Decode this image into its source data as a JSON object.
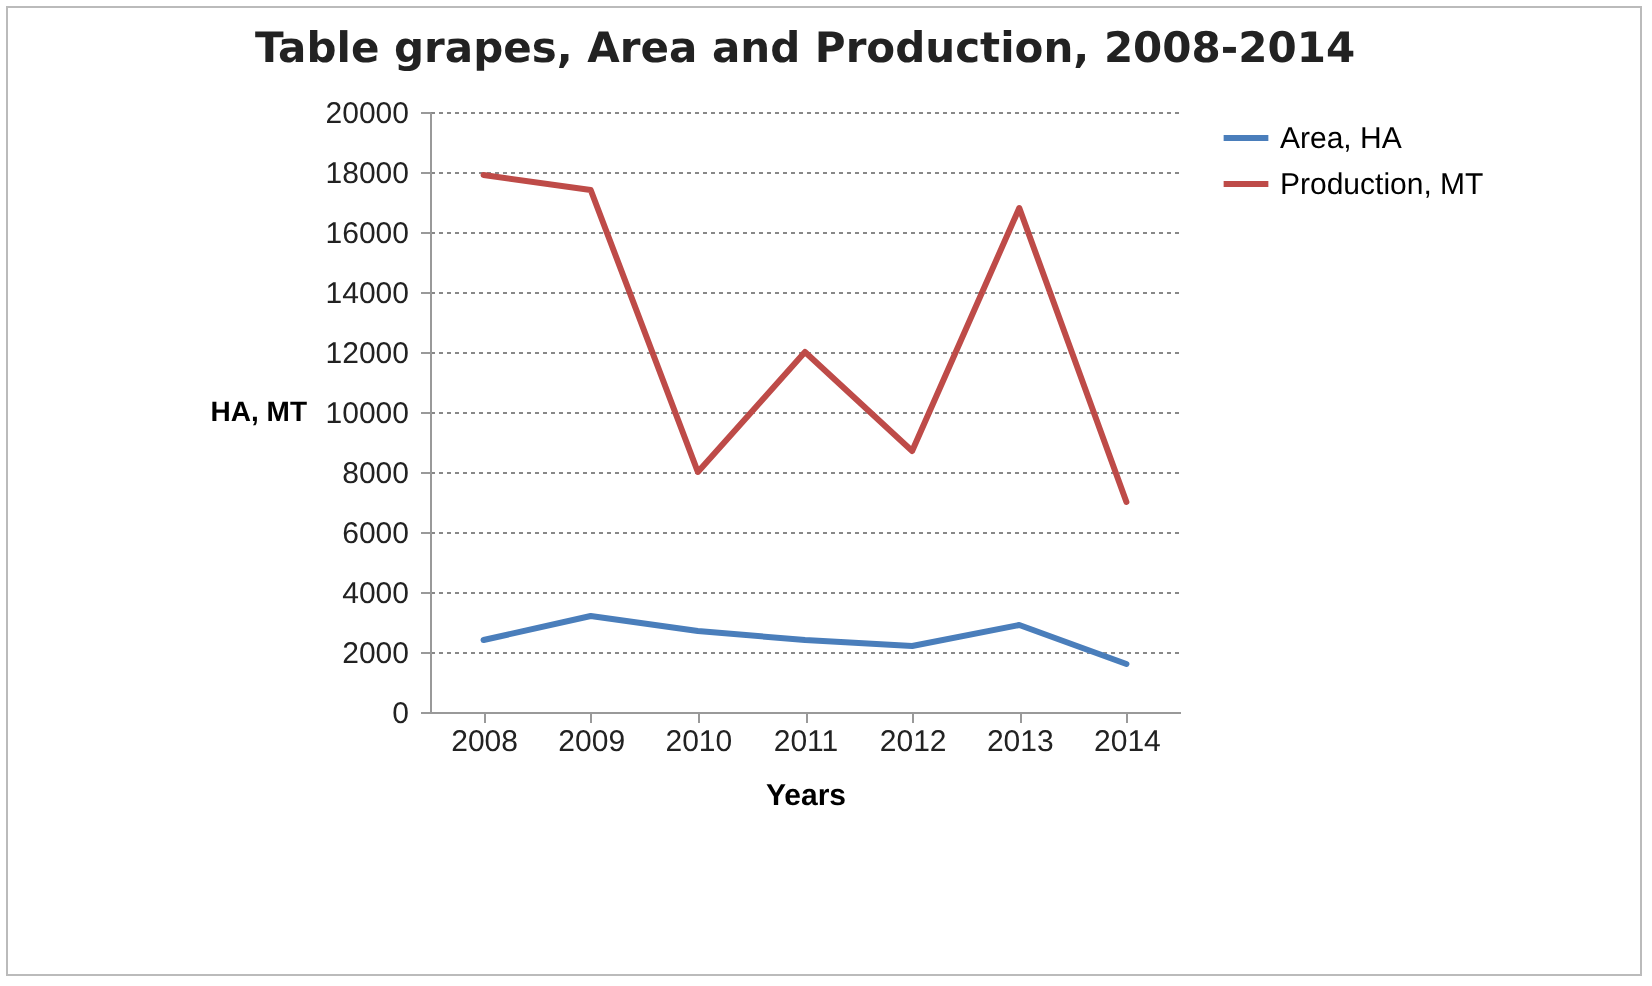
{
  "chart_data": {
    "type": "line",
    "title": "Table grapes, Area and Production, 2008-2014",
    "xlabel": "Years",
    "ylabel": "HA, MT",
    "categories": [
      "2008",
      "2009",
      "2010",
      "2011",
      "2012",
      "2013",
      "2014"
    ],
    "series": [
      {
        "name": "Area, HA",
        "color": "#4a7ebb",
        "values": [
          2400,
          3200,
          2700,
          2400,
          2200,
          2900,
          1600
        ]
      },
      {
        "name": "Production, MT",
        "color": "#be4b48",
        "values": [
          17900,
          17400,
          8000,
          12000,
          8700,
          16800,
          7000
        ]
      }
    ],
    "ylim": [
      0,
      20000
    ],
    "yticks": [
      0,
      2000,
      4000,
      6000,
      8000,
      10000,
      12000,
      14000,
      16000,
      18000,
      20000
    ],
    "grid": "y",
    "legend": "right",
    "line_style": "solid",
    "marker": "none"
  }
}
